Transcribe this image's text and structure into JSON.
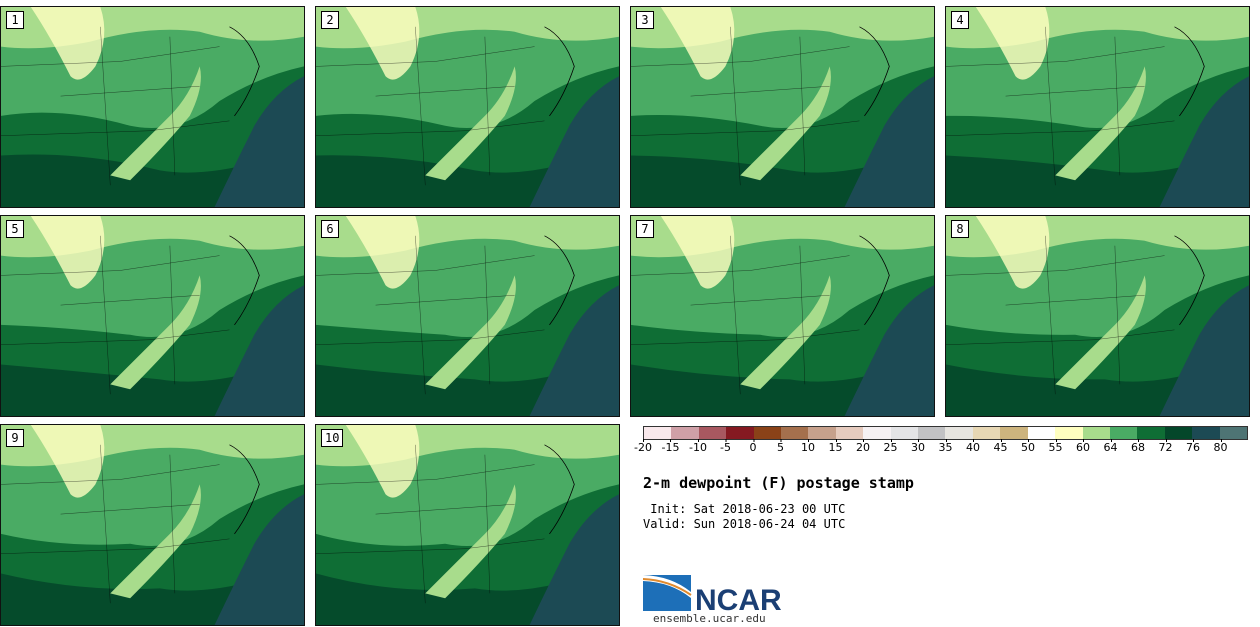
{
  "panels": [
    {
      "label": "1"
    },
    {
      "label": "2"
    },
    {
      "label": "3"
    },
    {
      "label": "4"
    },
    {
      "label": "5"
    },
    {
      "label": "6"
    },
    {
      "label": "7"
    },
    {
      "label": "8"
    },
    {
      "label": "9"
    },
    {
      "label": "10"
    }
  ],
  "colorbar": {
    "colors": [
      "#f9e9ec",
      "#cfa0a7",
      "#a85860",
      "#851921",
      "#8a4218",
      "#a5704d",
      "#c7a18c",
      "#e6cbbe",
      "#f6f1f3",
      "#e4e4e6",
      "#c2c2c4",
      "#e7e5e0",
      "#e7d7b4",
      "#cdb47e",
      "#ffffff",
      "#ffffc0",
      "#a8dc8c",
      "#4aab64",
      "#0f6e35",
      "#04472a",
      "#1c4a54",
      "#4e7474"
    ],
    "tick_labels": [
      "-20",
      "-15",
      "-10",
      "-5",
      "0",
      "5",
      "10",
      "15",
      "20",
      "25",
      "30",
      "35",
      "40",
      "45",
      "50",
      "55",
      "60",
      "64",
      "68",
      "72",
      "76",
      "80"
    ],
    "units": "°F"
  },
  "title": "2-m dewpoint (F) postage stamp",
  "init_line": " Init: Sat 2018-06-23 00 UTC",
  "valid_line": "Valid: Sun 2018-06-24 04 UTC",
  "logo_text": "NCAR",
  "website": "ensemble.ucar.edu"
}
